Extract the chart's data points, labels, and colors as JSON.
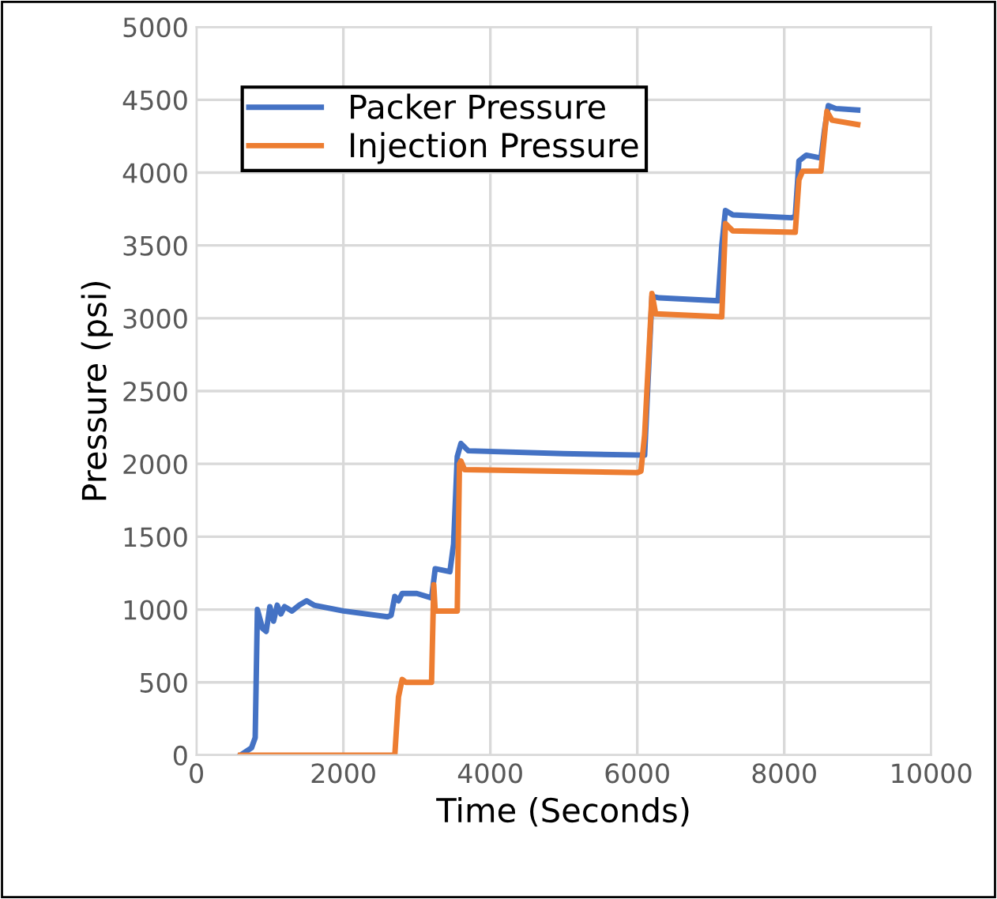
{
  "chart_data": {
    "type": "line",
    "xlabel": "Time (Seconds)",
    "ylabel": "Pressure (psi)",
    "xlim": [
      0,
      10000
    ],
    "xticks": [
      0,
      2000,
      4000,
      6000,
      8000,
      10000
    ],
    "ylim": [
      0,
      5000
    ],
    "yticks": [
      0,
      500,
      1000,
      1500,
      2000,
      2500,
      3000,
      3500,
      4000,
      4500,
      5000
    ],
    "grid": true,
    "legend": "top left",
    "marker": "none",
    "line_style": "solid",
    "series": [
      {
        "name": "Packer Pressure",
        "color": "#4472c4",
        "x": [
          600,
          750,
          800,
          830,
          900,
          950,
          1000,
          1050,
          1100,
          1150,
          1200,
          1300,
          1400,
          1500,
          1600,
          2000,
          2600,
          2650,
          2700,
          2750,
          2800,
          3000,
          3200,
          3250,
          3450,
          3500,
          3550,
          3600,
          3700,
          5000,
          6100,
          6200,
          6300,
          7100,
          7150,
          7200,
          7300,
          8100,
          8150,
          8200,
          8300,
          8500,
          8550,
          8600,
          8700,
          9000
        ],
        "values": [
          0,
          50,
          120,
          1000,
          870,
          850,
          1020,
          920,
          1030,
          970,
          1020,
          990,
          1030,
          1060,
          1030,
          990,
          950,
          960,
          1090,
          1060,
          1110,
          1110,
          1080,
          1280,
          1260,
          1450,
          2050,
          2140,
          2090,
          2070,
          2060,
          3150,
          3140,
          3120,
          3500,
          3740,
          3710,
          3690,
          3700,
          4080,
          4120,
          4100,
          4300,
          4460,
          4440,
          4430
        ]
      },
      {
        "name": "Injection Pressure",
        "color": "#ed7d31",
        "x": [
          600,
          2700,
          2750,
          2800,
          2850,
          3200,
          3230,
          3250,
          3550,
          3580,
          3600,
          3650,
          6000,
          6050,
          6100,
          6200,
          6250,
          7150,
          7200,
          7300,
          8150,
          8200,
          8250,
          8500,
          8580,
          8650,
          9000
        ],
        "values": [
          0,
          0,
          400,
          520,
          500,
          500,
          1170,
          990,
          990,
          2000,
          2020,
          1960,
          1940,
          1950,
          2200,
          3170,
          3030,
          3010,
          3650,
          3600,
          3590,
          3950,
          4010,
          4010,
          4420,
          4360,
          4330
        ]
      }
    ]
  }
}
